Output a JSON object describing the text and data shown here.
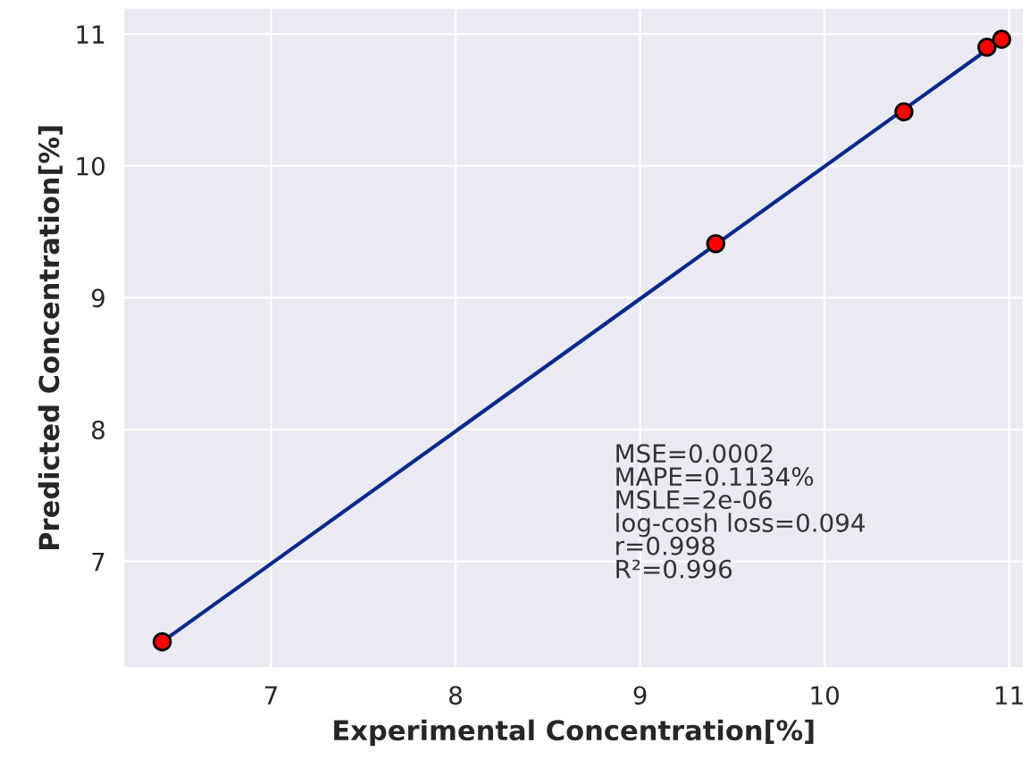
{
  "chart_data": {
    "type": "scatter",
    "xlabel": "Experimental Concentration[%]",
    "ylabel": "Predicted Concentration[%]",
    "x": [
      6.41,
      9.41,
      10.43,
      10.88,
      10.96
    ],
    "series": [
      {
        "type": "line",
        "x": [
          6.41,
          10.96
        ],
        "values": [
          6.39,
          10.96
        ],
        "color": "#0a2a8a"
      },
      {
        "values": [
          6.39,
          9.41,
          10.41,
          10.9,
          10.96
        ],
        "color": "#ff0000",
        "marker": "circle"
      }
    ],
    "xlim": [
      6.2,
      11.08
    ],
    "ylim": [
      6.19,
      11.2
    ],
    "xticks": [
      7,
      8,
      9,
      10,
      11
    ],
    "yticks": [
      7,
      8,
      9,
      10,
      11
    ],
    "grid": true,
    "annotations": [
      "MSE=0.0002",
      "MAPE=0.1134%",
      "MSLE=2e-06",
      "log-cosh loss=0.094",
      "r=0.998",
      "R²=0.996"
    ]
  }
}
